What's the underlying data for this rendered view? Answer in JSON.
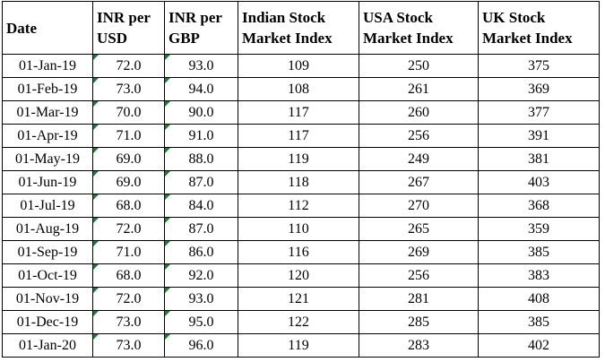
{
  "table": {
    "header": [
      [
        "Date"
      ],
      [
        "INR per",
        "USD"
      ],
      [
        "INR per",
        "GBP"
      ],
      [
        "Indian Stock",
        "Market Index"
      ],
      [
        "USA Stock",
        "Market Index"
      ],
      [
        "UK Stock",
        "Market Index"
      ]
    ],
    "rows": [
      [
        "01-Jan-19",
        "72.0",
        "93.0",
        "109",
        "250",
        "375"
      ],
      [
        "01-Feb-19",
        "73.0",
        "94.0",
        "108",
        "261",
        "369"
      ],
      [
        "01-Mar-19",
        "70.0",
        "90.0",
        "117",
        "260",
        "377"
      ],
      [
        "01-Apr-19",
        "71.0",
        "91.0",
        "117",
        "256",
        "391"
      ],
      [
        "01-May-19",
        "69.0",
        "88.0",
        "119",
        "249",
        "381"
      ],
      [
        "01-Jun-19",
        "69.0",
        "87.0",
        "118",
        "267",
        "403"
      ],
      [
        "01-Jul-19",
        "68.0",
        "84.0",
        "112",
        "270",
        "368"
      ],
      [
        "01-Aug-19",
        "72.0",
        "87.0",
        "110",
        "265",
        "359"
      ],
      [
        "01-Sep-19",
        "71.0",
        "86.0",
        "116",
        "269",
        "385"
      ],
      [
        "01-Oct-19",
        "68.0",
        "92.0",
        "120",
        "256",
        "383"
      ],
      [
        "01-Nov-19",
        "72.0",
        "93.0",
        "121",
        "281",
        "408"
      ],
      [
        "01-Dec-19",
        "73.0",
        "95.0",
        "122",
        "285",
        "385"
      ],
      [
        "01-Jan-20",
        "73.0",
        "96.0",
        "119",
        "283",
        "402"
      ]
    ]
  }
}
